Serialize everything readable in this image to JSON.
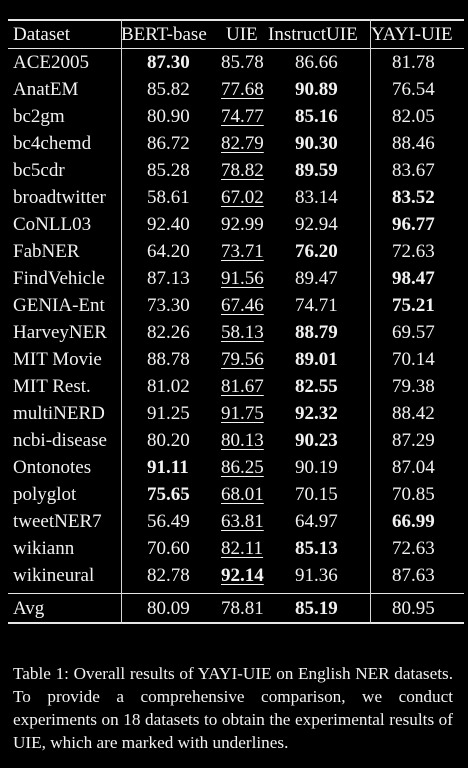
{
  "table": {
    "headers": [
      "Dataset",
      "BERT-base",
      "UIE",
      "InstructUIE",
      "YAYI-UIE"
    ],
    "rows": [
      {
        "dataset": "ACE2005",
        "bert": "87.30",
        "uie": "85.78",
        "instruct": "86.66",
        "yayi": "81.78",
        "bold": [
          "bert"
        ],
        "underline": []
      },
      {
        "dataset": "AnatEM",
        "bert": "85.82",
        "uie": "77.68",
        "instruct": "90.89",
        "yayi": "76.54",
        "bold": [
          "instruct"
        ],
        "underline": [
          "uie"
        ]
      },
      {
        "dataset": "bc2gm",
        "bert": "80.90",
        "uie": "74.77",
        "instruct": "85.16",
        "yayi": "82.05",
        "bold": [
          "instruct"
        ],
        "underline": [
          "uie"
        ]
      },
      {
        "dataset": "bc4chemd",
        "bert": "86.72",
        "uie": "82.79",
        "instruct": "90.30",
        "yayi": "88.46",
        "bold": [
          "instruct"
        ],
        "underline": [
          "uie"
        ]
      },
      {
        "dataset": "bc5cdr",
        "bert": "85.28",
        "uie": "78.82",
        "instruct": "89.59",
        "yayi": "83.67",
        "bold": [
          "instruct"
        ],
        "underline": [
          "uie"
        ]
      },
      {
        "dataset": "broadtwitter",
        "bert": "58.61",
        "uie": "67.02",
        "instruct": "83.14",
        "yayi": "83.52",
        "bold": [
          "yayi"
        ],
        "underline": [
          "uie"
        ]
      },
      {
        "dataset": "CoNLL03",
        "bert": "92.40",
        "uie": "92.99",
        "instruct": "92.94",
        "yayi": "96.77",
        "bold": [
          "yayi"
        ],
        "underline": []
      },
      {
        "dataset": "FabNER",
        "bert": "64.20",
        "uie": "73.71",
        "instruct": "76.20",
        "yayi": "72.63",
        "bold": [
          "instruct"
        ],
        "underline": [
          "uie"
        ]
      },
      {
        "dataset": "FindVehicle",
        "bert": "87.13",
        "uie": "91.56",
        "instruct": "89.47",
        "yayi": "98.47",
        "bold": [
          "yayi"
        ],
        "underline": [
          "uie"
        ]
      },
      {
        "dataset": "GENIA-Ent",
        "bert": "73.30",
        "uie": "67.46",
        "instruct": "74.71",
        "yayi": "75.21",
        "bold": [
          "yayi"
        ],
        "underline": [
          "uie"
        ]
      },
      {
        "dataset": "HarveyNER",
        "bert": "82.26",
        "uie": "58.13",
        "instruct": "88.79",
        "yayi": "69.57",
        "bold": [
          "instruct"
        ],
        "underline": [
          "uie"
        ]
      },
      {
        "dataset": "MIT Movie",
        "bert": "88.78",
        "uie": "79.56",
        "instruct": "89.01",
        "yayi": "70.14",
        "bold": [
          "instruct"
        ],
        "underline": [
          "uie"
        ]
      },
      {
        "dataset": "MIT Rest.",
        "bert": "81.02",
        "uie": "81.67",
        "instruct": "82.55",
        "yayi": "79.38",
        "bold": [
          "instruct"
        ],
        "underline": [
          "uie"
        ]
      },
      {
        "dataset": "multiNERD",
        "bert": "91.25",
        "uie": "91.75",
        "instruct": "92.32",
        "yayi": "88.42",
        "bold": [
          "instruct"
        ],
        "underline": [
          "uie"
        ]
      },
      {
        "dataset": "ncbi-disease",
        "bert": "80.20",
        "uie": "80.13",
        "instruct": "90.23",
        "yayi": "87.29",
        "bold": [
          "instruct"
        ],
        "underline": [
          "uie"
        ]
      },
      {
        "dataset": "Ontonotes",
        "bert": "91.11",
        "uie": "86.25",
        "instruct": "90.19",
        "yayi": "87.04",
        "bold": [
          "bert"
        ],
        "underline": [
          "uie"
        ]
      },
      {
        "dataset": "polyglot",
        "bert": "75.65",
        "uie": "68.01",
        "instruct": "70.15",
        "yayi": "70.85",
        "bold": [
          "bert"
        ],
        "underline": [
          "uie"
        ]
      },
      {
        "dataset": "tweetNER7",
        "bert": "56.49",
        "uie": "63.81",
        "instruct": "64.97",
        "yayi": "66.99",
        "bold": [
          "yayi"
        ],
        "underline": [
          "uie"
        ]
      },
      {
        "dataset": "wikiann",
        "bert": "70.60",
        "uie": "82.11",
        "instruct": "85.13",
        "yayi": "72.63",
        "bold": [
          "instruct"
        ],
        "underline": [
          "uie"
        ]
      },
      {
        "dataset": "wikineural",
        "bert": "82.78",
        "uie": "92.14",
        "instruct": "91.36",
        "yayi": "87.63",
        "bold": [
          "uie"
        ],
        "underline": [
          "uie"
        ]
      }
    ],
    "avg": {
      "dataset": "Avg",
      "bert": "80.09",
      "uie": "78.81",
      "instruct": "85.19",
      "yayi": "80.95",
      "bold": [
        "instruct"
      ],
      "underline": []
    }
  },
  "caption": "Table 1: Overall results of YAYI-UIE on English NER datasets. To provide a comprehensive comparison, we conduct experiments on 18 datasets to obtain the experimental results of UIE, which are marked with underlines."
}
